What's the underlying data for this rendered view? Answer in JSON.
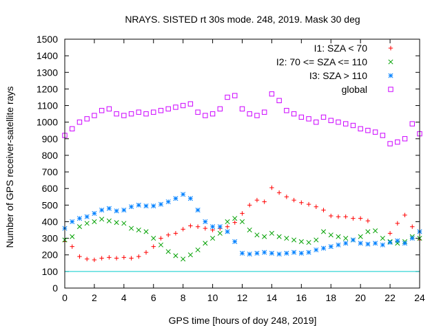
{
  "chart_data": {
    "type": "scatter",
    "title": "NRAYS. SISTED rt 30s mode. 248, 2019. Mask 30 deg",
    "xlabel": "GPS time [hours of doy 248, 2019]",
    "ylabel": "Number of GPS receiver-satellite rays",
    "xlim": [
      0,
      24
    ],
    "ylim": [
      0,
      1500
    ],
    "xticks": [
      0,
      2,
      4,
      6,
      8,
      10,
      12,
      14,
      16,
      18,
      20,
      22,
      24
    ],
    "yticks": [
      0,
      100,
      200,
      300,
      400,
      500,
      600,
      700,
      800,
      900,
      1000,
      1100,
      1200,
      1300,
      1400,
      1500
    ],
    "legend_position": "top-right",
    "reference_line": {
      "y": 100,
      "color": "#00cccc"
    },
    "series": [
      {
        "name": "I1: SZA < 70",
        "color": "#ff0000",
        "marker": "+",
        "x": [
          0,
          0.5,
          1,
          1.5,
          2,
          2.5,
          3,
          3.5,
          4,
          4.5,
          5,
          5.5,
          6,
          6.5,
          7,
          7.5,
          8,
          8.5,
          9,
          9.5,
          10,
          10.5,
          11,
          11.5,
          12,
          12.5,
          13,
          13.5,
          14,
          14.5,
          15,
          15.5,
          16,
          16.5,
          17,
          17.5,
          18,
          18.5,
          19,
          19.5,
          20,
          20.5,
          22,
          22.5,
          23,
          23.5,
          24
        ],
        "y": [
          280,
          250,
          190,
          175,
          170,
          180,
          185,
          180,
          185,
          180,
          190,
          215,
          250,
          300,
          320,
          330,
          355,
          375,
          370,
          360,
          350,
          360,
          370,
          395,
          450,
          500,
          530,
          520,
          605,
          575,
          550,
          530,
          515,
          505,
          490,
          470,
          435,
          430,
          430,
          420,
          420,
          405,
          330,
          390,
          440,
          370,
          290
        ]
      },
      {
        "name": "I2: 70 <= SZA <= 110",
        "color": "#00a000",
        "marker": "x",
        "x": [
          0,
          0.5,
          1,
          1.5,
          2,
          2.5,
          3,
          3.5,
          4,
          4.5,
          5,
          5.5,
          6,
          6.5,
          7,
          7.5,
          8,
          8.5,
          9,
          9.5,
          10,
          10.5,
          11,
          11.5,
          12,
          12.5,
          13,
          13.5,
          14,
          14.5,
          15,
          15.5,
          16,
          16.5,
          17,
          17.5,
          18,
          18.5,
          19,
          19.5,
          20,
          20.5,
          21,
          21.5,
          22,
          22.5,
          23,
          23.5,
          24
        ],
        "y": [
          290,
          310,
          370,
          390,
          400,
          415,
          405,
          395,
          390,
          360,
          350,
          340,
          300,
          260,
          220,
          195,
          175,
          200,
          230,
          270,
          300,
          330,
          400,
          420,
          400,
          350,
          320,
          310,
          330,
          310,
          300,
          290,
          280,
          275,
          290,
          340,
          320,
          310,
          300,
          290,
          310,
          340,
          345,
          300,
          280,
          270,
          280,
          310,
          300
        ]
      },
      {
        "name": "I3: SZA > 110",
        "color": "#0080ff",
        "marker": "*",
        "x": [
          0,
          0.5,
          1,
          1.5,
          2,
          2.5,
          3,
          3.5,
          4,
          4.5,
          5,
          5.5,
          6,
          6.5,
          7,
          7.5,
          8,
          8.5,
          9,
          9.5,
          10,
          10.5,
          11,
          11.5,
          12,
          12.5,
          13,
          13.5,
          14,
          14.5,
          15,
          15.5,
          16,
          16.5,
          17,
          17.5,
          18,
          18.5,
          19,
          19.5,
          20,
          20.5,
          21,
          21.5,
          22,
          22.5,
          23,
          23.5,
          24
        ],
        "y": [
          360,
          400,
          420,
          430,
          450,
          470,
          480,
          465,
          470,
          490,
          500,
          495,
          495,
          505,
          520,
          540,
          565,
          540,
          470,
          400,
          370,
          370,
          340,
          280,
          210,
          205,
          210,
          215,
          210,
          205,
          210,
          215,
          210,
          215,
          230,
          240,
          250,
          260,
          270,
          290,
          270,
          265,
          270,
          260,
          275,
          285,
          270,
          300,
          340
        ]
      },
      {
        "name": "global",
        "color": "#cc00ff",
        "marker": "square",
        "x": [
          0,
          0.5,
          1,
          1.5,
          2,
          2.5,
          3,
          3.5,
          4,
          4.5,
          5,
          5.5,
          6,
          6.5,
          7,
          7.5,
          8,
          8.5,
          9,
          9.5,
          10,
          10.5,
          11,
          11.5,
          12,
          12.5,
          13,
          13.5,
          14,
          14.5,
          15,
          15.5,
          16,
          16.5,
          17,
          17.5,
          18,
          18.5,
          19,
          19.5,
          20,
          20.5,
          21,
          21.5,
          22,
          22.5,
          23,
          23.5,
          24
        ],
        "y": [
          920,
          960,
          1000,
          1020,
          1040,
          1070,
          1080,
          1050,
          1040,
          1050,
          1060,
          1050,
          1060,
          1070,
          1080,
          1090,
          1100,
          1110,
          1060,
          1040,
          1050,
          1080,
          1150,
          1160,
          1080,
          1050,
          1040,
          1060,
          1170,
          1130,
          1070,
          1050,
          1030,
          1020,
          1000,
          1030,
          1010,
          1000,
          990,
          980,
          960,
          950,
          940,
          920,
          870,
          880,
          900,
          990,
          930
        ]
      }
    ]
  }
}
